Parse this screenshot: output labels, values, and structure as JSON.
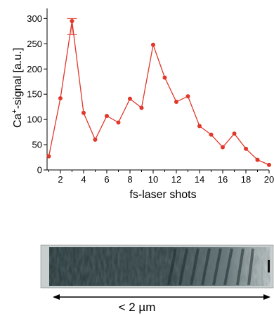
{
  "chart_data": {
    "type": "line",
    "xlabel": "fs-laser shots",
    "ylabel_prefix": "Ca",
    "ylabel_sup": "+",
    "ylabel_suffix": "-signal [a.u.]",
    "x": [
      1,
      2,
      3,
      4,
      5,
      6,
      7,
      8,
      9,
      10,
      11,
      12,
      13,
      14,
      15,
      16,
      17,
      18,
      19,
      20
    ],
    "values": [
      27,
      142,
      295,
      113,
      60,
      107,
      94,
      141,
      123,
      248,
      183,
      135,
      146,
      87,
      70,
      45,
      72,
      42,
      20,
      10
    ],
    "error_bar": {
      "x": 3,
      "low": 268,
      "high": 300
    },
    "xlim": [
      0.85,
      20
    ],
    "ylim": [
      0,
      320
    ],
    "xticks": [
      2,
      4,
      6,
      8,
      10,
      12,
      14,
      16,
      18,
      20
    ],
    "yticks": [
      0,
      50,
      100,
      150,
      200,
      250,
      300
    ],
    "color": "#e0382a"
  },
  "micrograph": {
    "scale_label": "< 2 µm",
    "colors": {
      "dark": "#2c3c3e",
      "mid": "#5a6b6d",
      "light": "#b8c0c0"
    }
  }
}
